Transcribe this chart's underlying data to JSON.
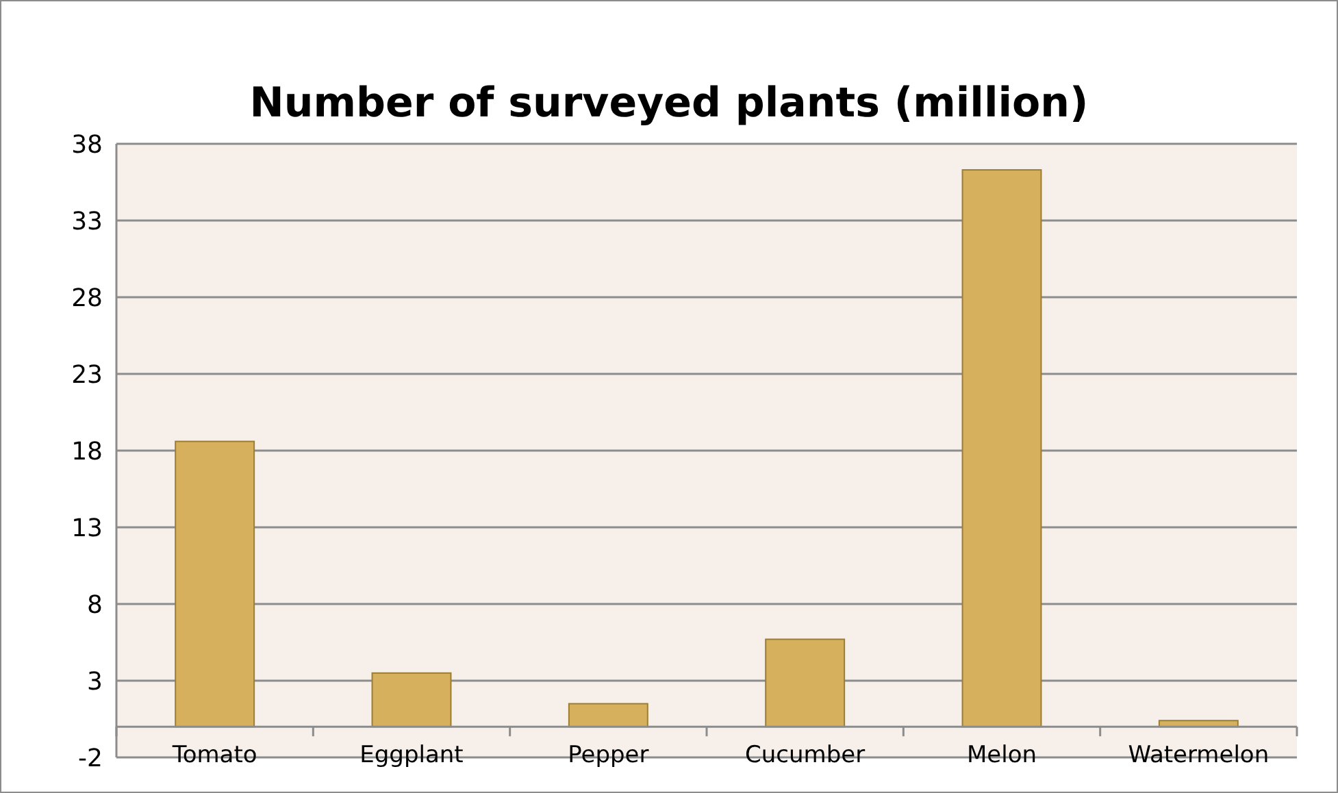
{
  "chart_data": {
    "type": "bar",
    "title": "Number of surveyed plants (million)",
    "categories": [
      "Tomato",
      "Eggplant",
      "Pepper",
      "Cucumber",
      "Melon",
      "Watermelon"
    ],
    "values": [
      18.6,
      3.5,
      1.5,
      5.7,
      36.3,
      0.4
    ],
    "color": "#d6b05c",
    "ylim": [
      -2,
      38
    ],
    "yticks": [
      -2,
      3,
      8,
      13,
      18,
      23,
      28,
      33,
      38
    ],
    "grid": "y"
  }
}
